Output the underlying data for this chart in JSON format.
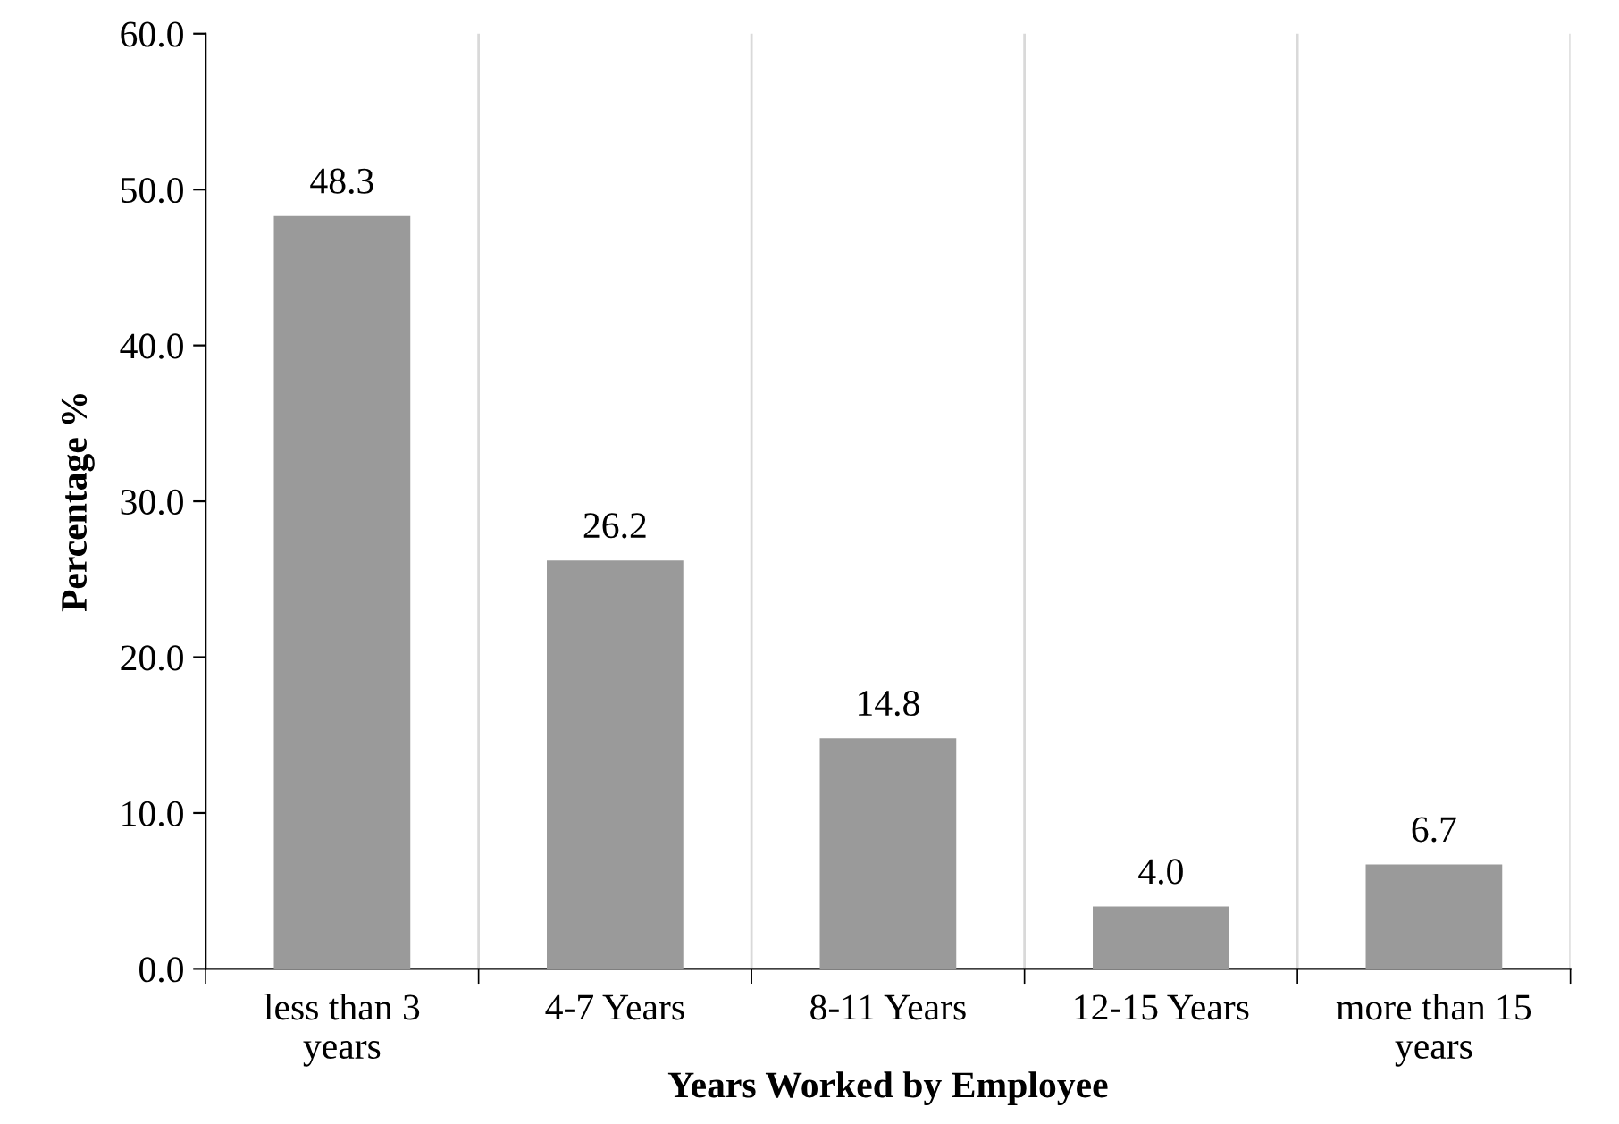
{
  "chart_data": {
    "type": "bar",
    "xlabel": "Years Worked by Employee",
    "ylabel": "Percentage %",
    "categories": [
      "less than 3\nyears",
      "4-7 Years",
      "8-11 Years",
      "12-15 Years",
      "more than 15\nyears"
    ],
    "values": [
      48.3,
      26.2,
      14.8,
      4.0,
      6.7
    ],
    "value_labels": [
      "48.3",
      "26.2",
      "14.8",
      "4.0",
      "6.7"
    ],
    "color": "#9a9a9a",
    "ylim": [
      0,
      60
    ],
    "yticks": [
      {
        "value": 0,
        "label": "0.0"
      },
      {
        "value": 10,
        "label": "10.0"
      },
      {
        "value": 20,
        "label": "20.0"
      },
      {
        "value": 30,
        "label": "30.0"
      },
      {
        "value": 40,
        "label": "40.0"
      },
      {
        "value": 50,
        "label": "50.0"
      },
      {
        "value": 60,
        "label": "60.0"
      }
    ],
    "grid": "x",
    "legend": false
  }
}
